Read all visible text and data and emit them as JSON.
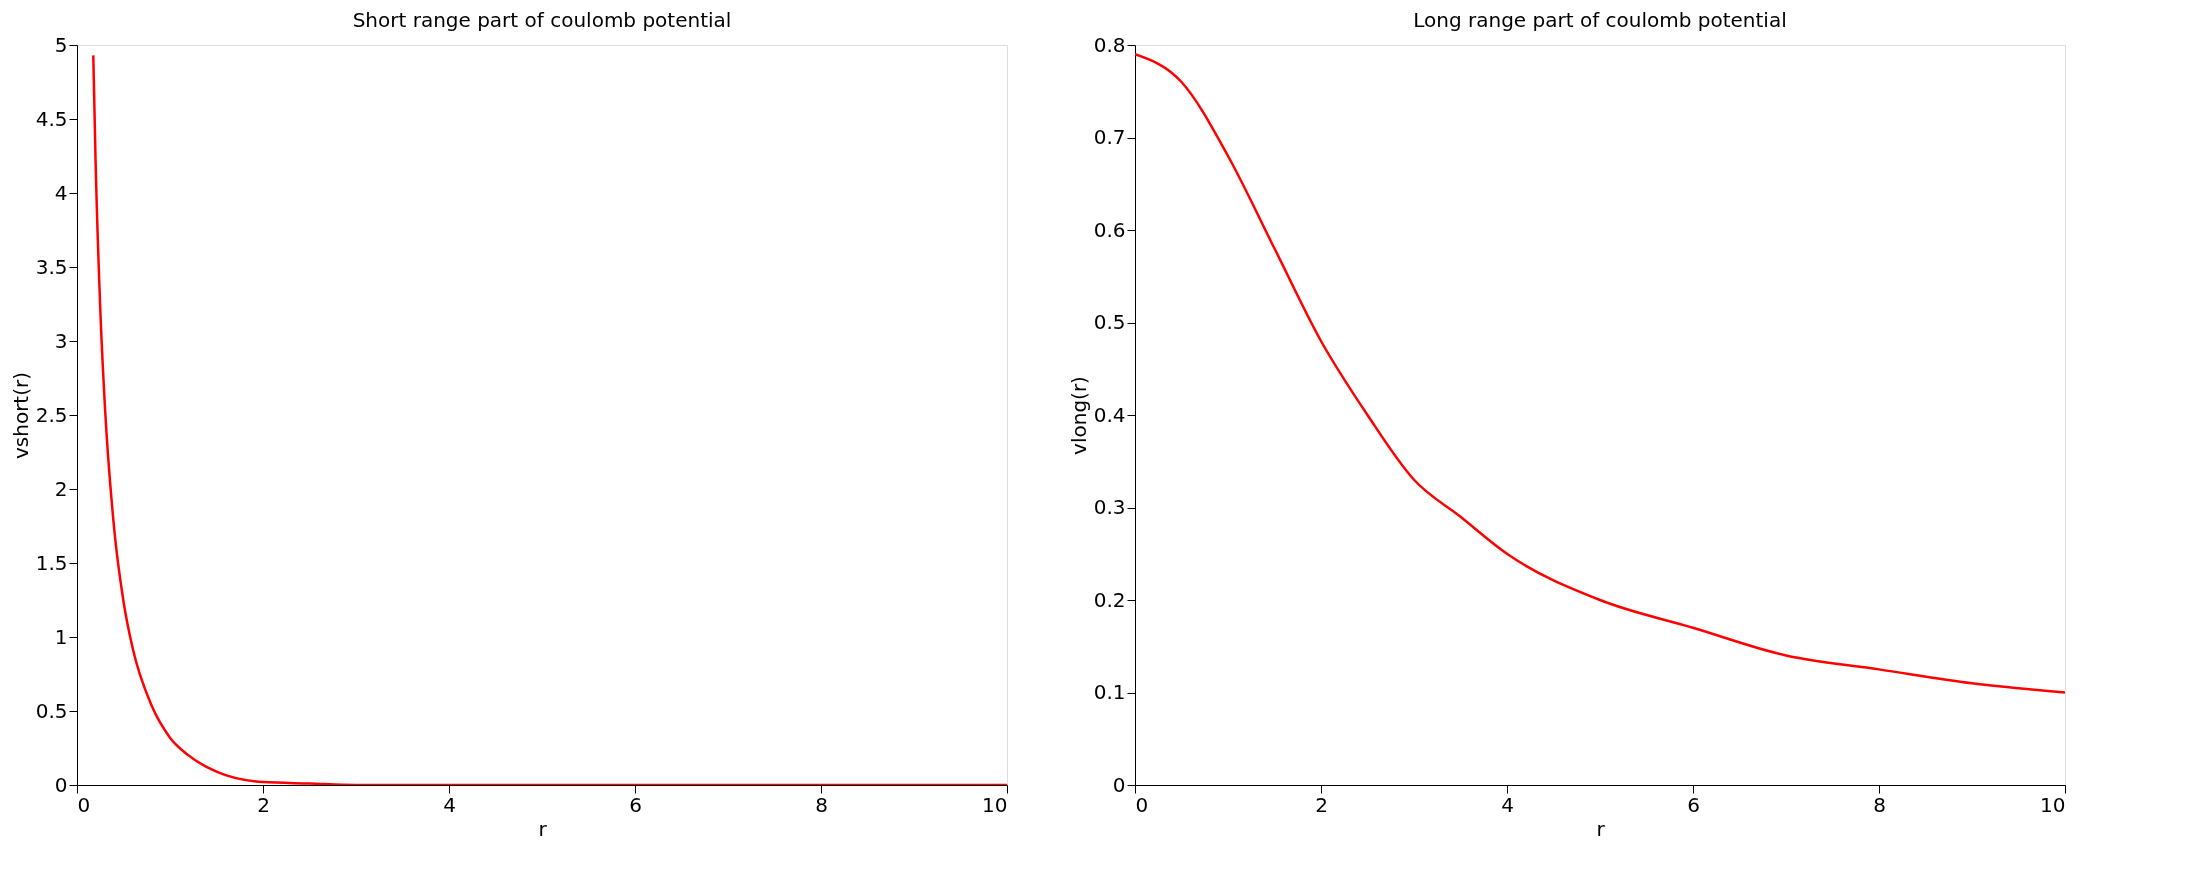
{
  "chart_data": [
    {
      "type": "line",
      "title": "Short range part of coulomb potential",
      "xlabel": "r",
      "ylabel": "vshort(r)",
      "series": [
        {
          "color": "#ff0000",
          "x": [
            0.175,
            0.2,
            0.25,
            0.3,
            0.4,
            0.5,
            0.6,
            0.8,
            1,
            1.2,
            1.5,
            2,
            2.5,
            3,
            4,
            6,
            8,
            10
          ],
          "values": [
            4.93,
            4.21,
            3.22,
            2.56,
            1.73,
            1.24,
            0.92,
            0.54,
            0.32,
            0.2,
            0.09,
            0.02,
            0.01,
            0,
            0,
            0,
            0,
            0
          ]
        }
      ],
      "xlim": [
        0,
        10
      ],
      "xticks": [
        0,
        2,
        4,
        6,
        8,
        10
      ],
      "ylim": [
        0,
        5
      ],
      "yticks": [
        0,
        0.5,
        1,
        1.5,
        2,
        2.5,
        3,
        3.5,
        4,
        4.5,
        5
      ],
      "grid": false,
      "line_style": "solid"
    },
    {
      "type": "line",
      "title": "Long range part of coulomb potential",
      "xlabel": "r",
      "ylabel": "vlong(r)",
      "series": [
        {
          "color": "#ff0000",
          "x": [
            0,
            0.5,
            1,
            1.5,
            2,
            2.5,
            3,
            3.5,
            4,
            5,
            6,
            7,
            8,
            9,
            10
          ],
          "values": [
            0.79,
            0.76,
            0.68,
            0.58,
            0.48,
            0.4,
            0.33,
            0.29,
            0.25,
            0.2,
            0.17,
            0.14,
            0.125,
            0.11,
            0.1
          ]
        }
      ],
      "xlim": [
        0,
        10
      ],
      "xticks": [
        0,
        2,
        4,
        6,
        8,
        10
      ],
      "ylim": [
        0,
        0.8
      ],
      "yticks": [
        0,
        0.1,
        0.2,
        0.3,
        0.4,
        0.5,
        0.6,
        0.7,
        0.8
      ],
      "grid": false,
      "line_style": "solid"
    }
  ]
}
